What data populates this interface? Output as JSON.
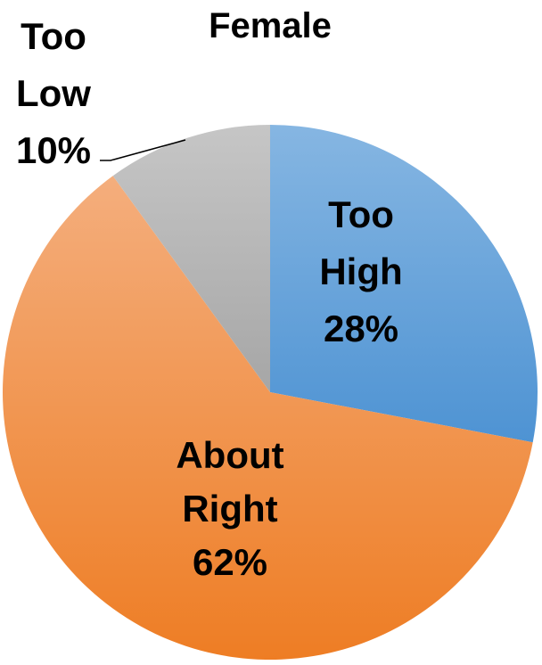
{
  "chart_data": {
    "type": "pie",
    "title": "Female",
    "categories": [
      "Too High",
      "About Right",
      "Too Low"
    ],
    "values": [
      28,
      62,
      10
    ],
    "labels": [
      {
        "lines": [
          "Too",
          "High",
          "28%"
        ]
      },
      {
        "lines": [
          "About",
          "Right",
          "62%"
        ]
      },
      {
        "lines": [
          "Too",
          "Low",
          "10%"
        ]
      }
    ],
    "colors": [
      "#5B9BD5",
      "#ED7D31",
      "#A5A5A5"
    ],
    "legend": "none",
    "start": "top, clockwise"
  }
}
